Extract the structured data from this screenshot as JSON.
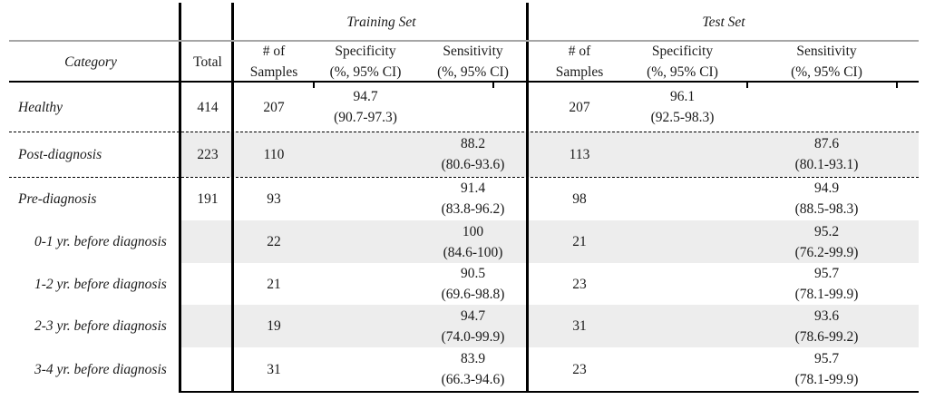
{
  "table": {
    "header": {
      "training_group": "Training Set",
      "test_group": "Test Set",
      "category": "Category",
      "total": "Total",
      "samples_line1": "# of",
      "samples_line2": "Samples",
      "specificity": "Specificity",
      "sensitivity": "Sensitivity",
      "ci_label": "(%, 95% CI)"
    },
    "colors": {
      "row_shade": "#ededed",
      "top_rule_gray": "#a6a6a6",
      "rule_black": "#000000"
    },
    "rows": [
      {
        "category": "Healthy",
        "total": "414",
        "train": {
          "samples": "207",
          "spec": {
            "value": "94.7",
            "ci": "(90.7-97.3)"
          }
        },
        "test": {
          "samples": "207",
          "spec": {
            "value": "96.1",
            "ci": "(92.5-98.3)"
          }
        }
      },
      {
        "category": "Post-diagnosis",
        "total": "223",
        "train": {
          "samples": "110",
          "sens": {
            "value": "88.2",
            "ci": "(80.6-93.6)"
          }
        },
        "test": {
          "samples": "113",
          "sens": {
            "value": "87.6",
            "ci": "(80.1-93.1)"
          }
        }
      },
      {
        "category": "Pre-diagnosis",
        "total": "191",
        "train": {
          "samples": "93",
          "sens": {
            "value": "91.4",
            "ci": "(83.8-96.2)"
          }
        },
        "test": {
          "samples": "98",
          "sens": {
            "value": "94.9",
            "ci": "(88.5-98.3)"
          }
        }
      },
      {
        "category": "0-1 yr. before diagnosis",
        "train": {
          "samples": "22",
          "sens": {
            "value": "100",
            "ci": "(84.6-100)"
          }
        },
        "test": {
          "samples": "21",
          "sens": {
            "value": "95.2",
            "ci": "(76.2-99.9)"
          }
        }
      },
      {
        "category": "1-2 yr. before diagnosis",
        "train": {
          "samples": "21",
          "sens": {
            "value": "90.5",
            "ci": "(69.6-98.8)"
          }
        },
        "test": {
          "samples": "23",
          "sens": {
            "value": "95.7",
            "ci": "(78.1-99.9)"
          }
        }
      },
      {
        "category": "2-3 yr. before diagnosis",
        "train": {
          "samples": "19",
          "sens": {
            "value": "94.7",
            "ci": "(74.0-99.9)"
          }
        },
        "test": {
          "samples": "31",
          "sens": {
            "value": "93.6",
            "ci": "(78.6-99.2)"
          }
        }
      },
      {
        "category": "3-4 yr. before diagnosis",
        "train": {
          "samples": "31",
          "sens": {
            "value": "83.9",
            "ci": "(66.3-94.6)"
          }
        },
        "test": {
          "samples": "23",
          "sens": {
            "value": "95.7",
            "ci": "(78.1-99.9)"
          }
        }
      }
    ]
  }
}
